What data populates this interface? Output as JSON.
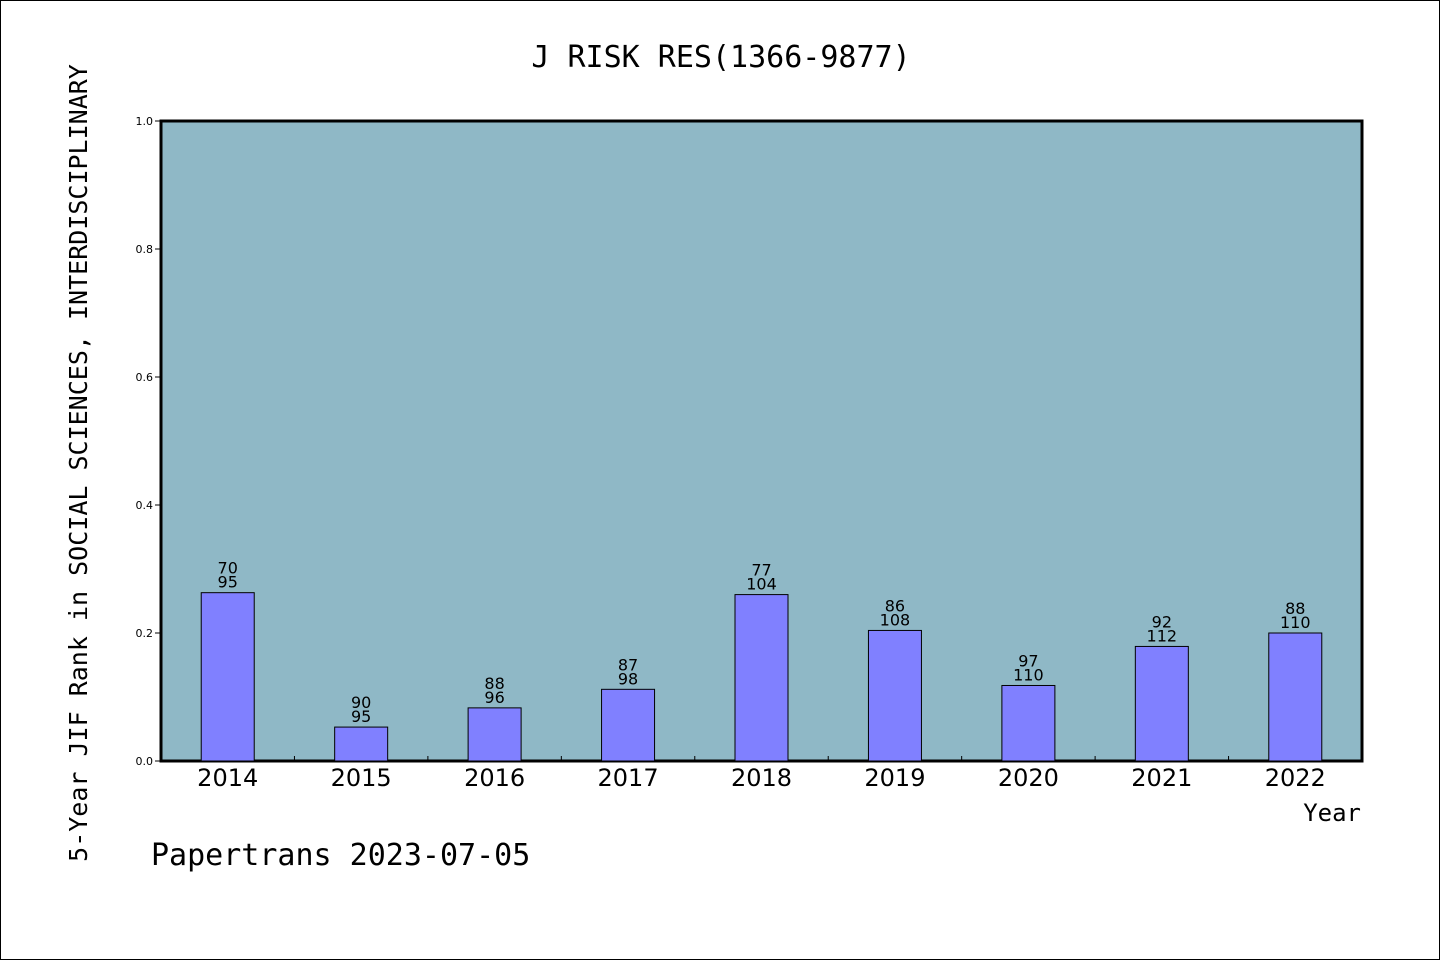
{
  "chart_data": {
    "type": "bar",
    "title": "J RISK RES(1366-9877)",
    "xlabel": "Year",
    "ylabel": "5-Year JIF Rank in SOCIAL SCIENCES,  INTERDISCIPLINARY",
    "footer": "Papertrans 2023-07-05",
    "categories": [
      "2014",
      "2015",
      "2016",
      "2017",
      "2018",
      "2019",
      "2020",
      "2021",
      "2022"
    ],
    "values": [
      0.263,
      0.053,
      0.083,
      0.112,
      0.26,
      0.204,
      0.118,
      0.179,
      0.2
    ],
    "ranks": [
      "70",
      "90",
      "88",
      "87",
      "77",
      "86",
      "97",
      "92",
      "88"
    ],
    "totals": [
      "95",
      "95",
      "96",
      "98",
      "104",
      "108",
      "110",
      "112",
      "110"
    ],
    "ylim": [
      0,
      1.0
    ],
    "yticks": [
      "0.0",
      "0.2",
      "0.4",
      "0.6",
      "0.8",
      "1.0"
    ],
    "grid": false,
    "colors": {
      "plot_background": "#8fb8c6",
      "bar_fill": "#8080ff",
      "bar_stroke": "#000000"
    }
  }
}
